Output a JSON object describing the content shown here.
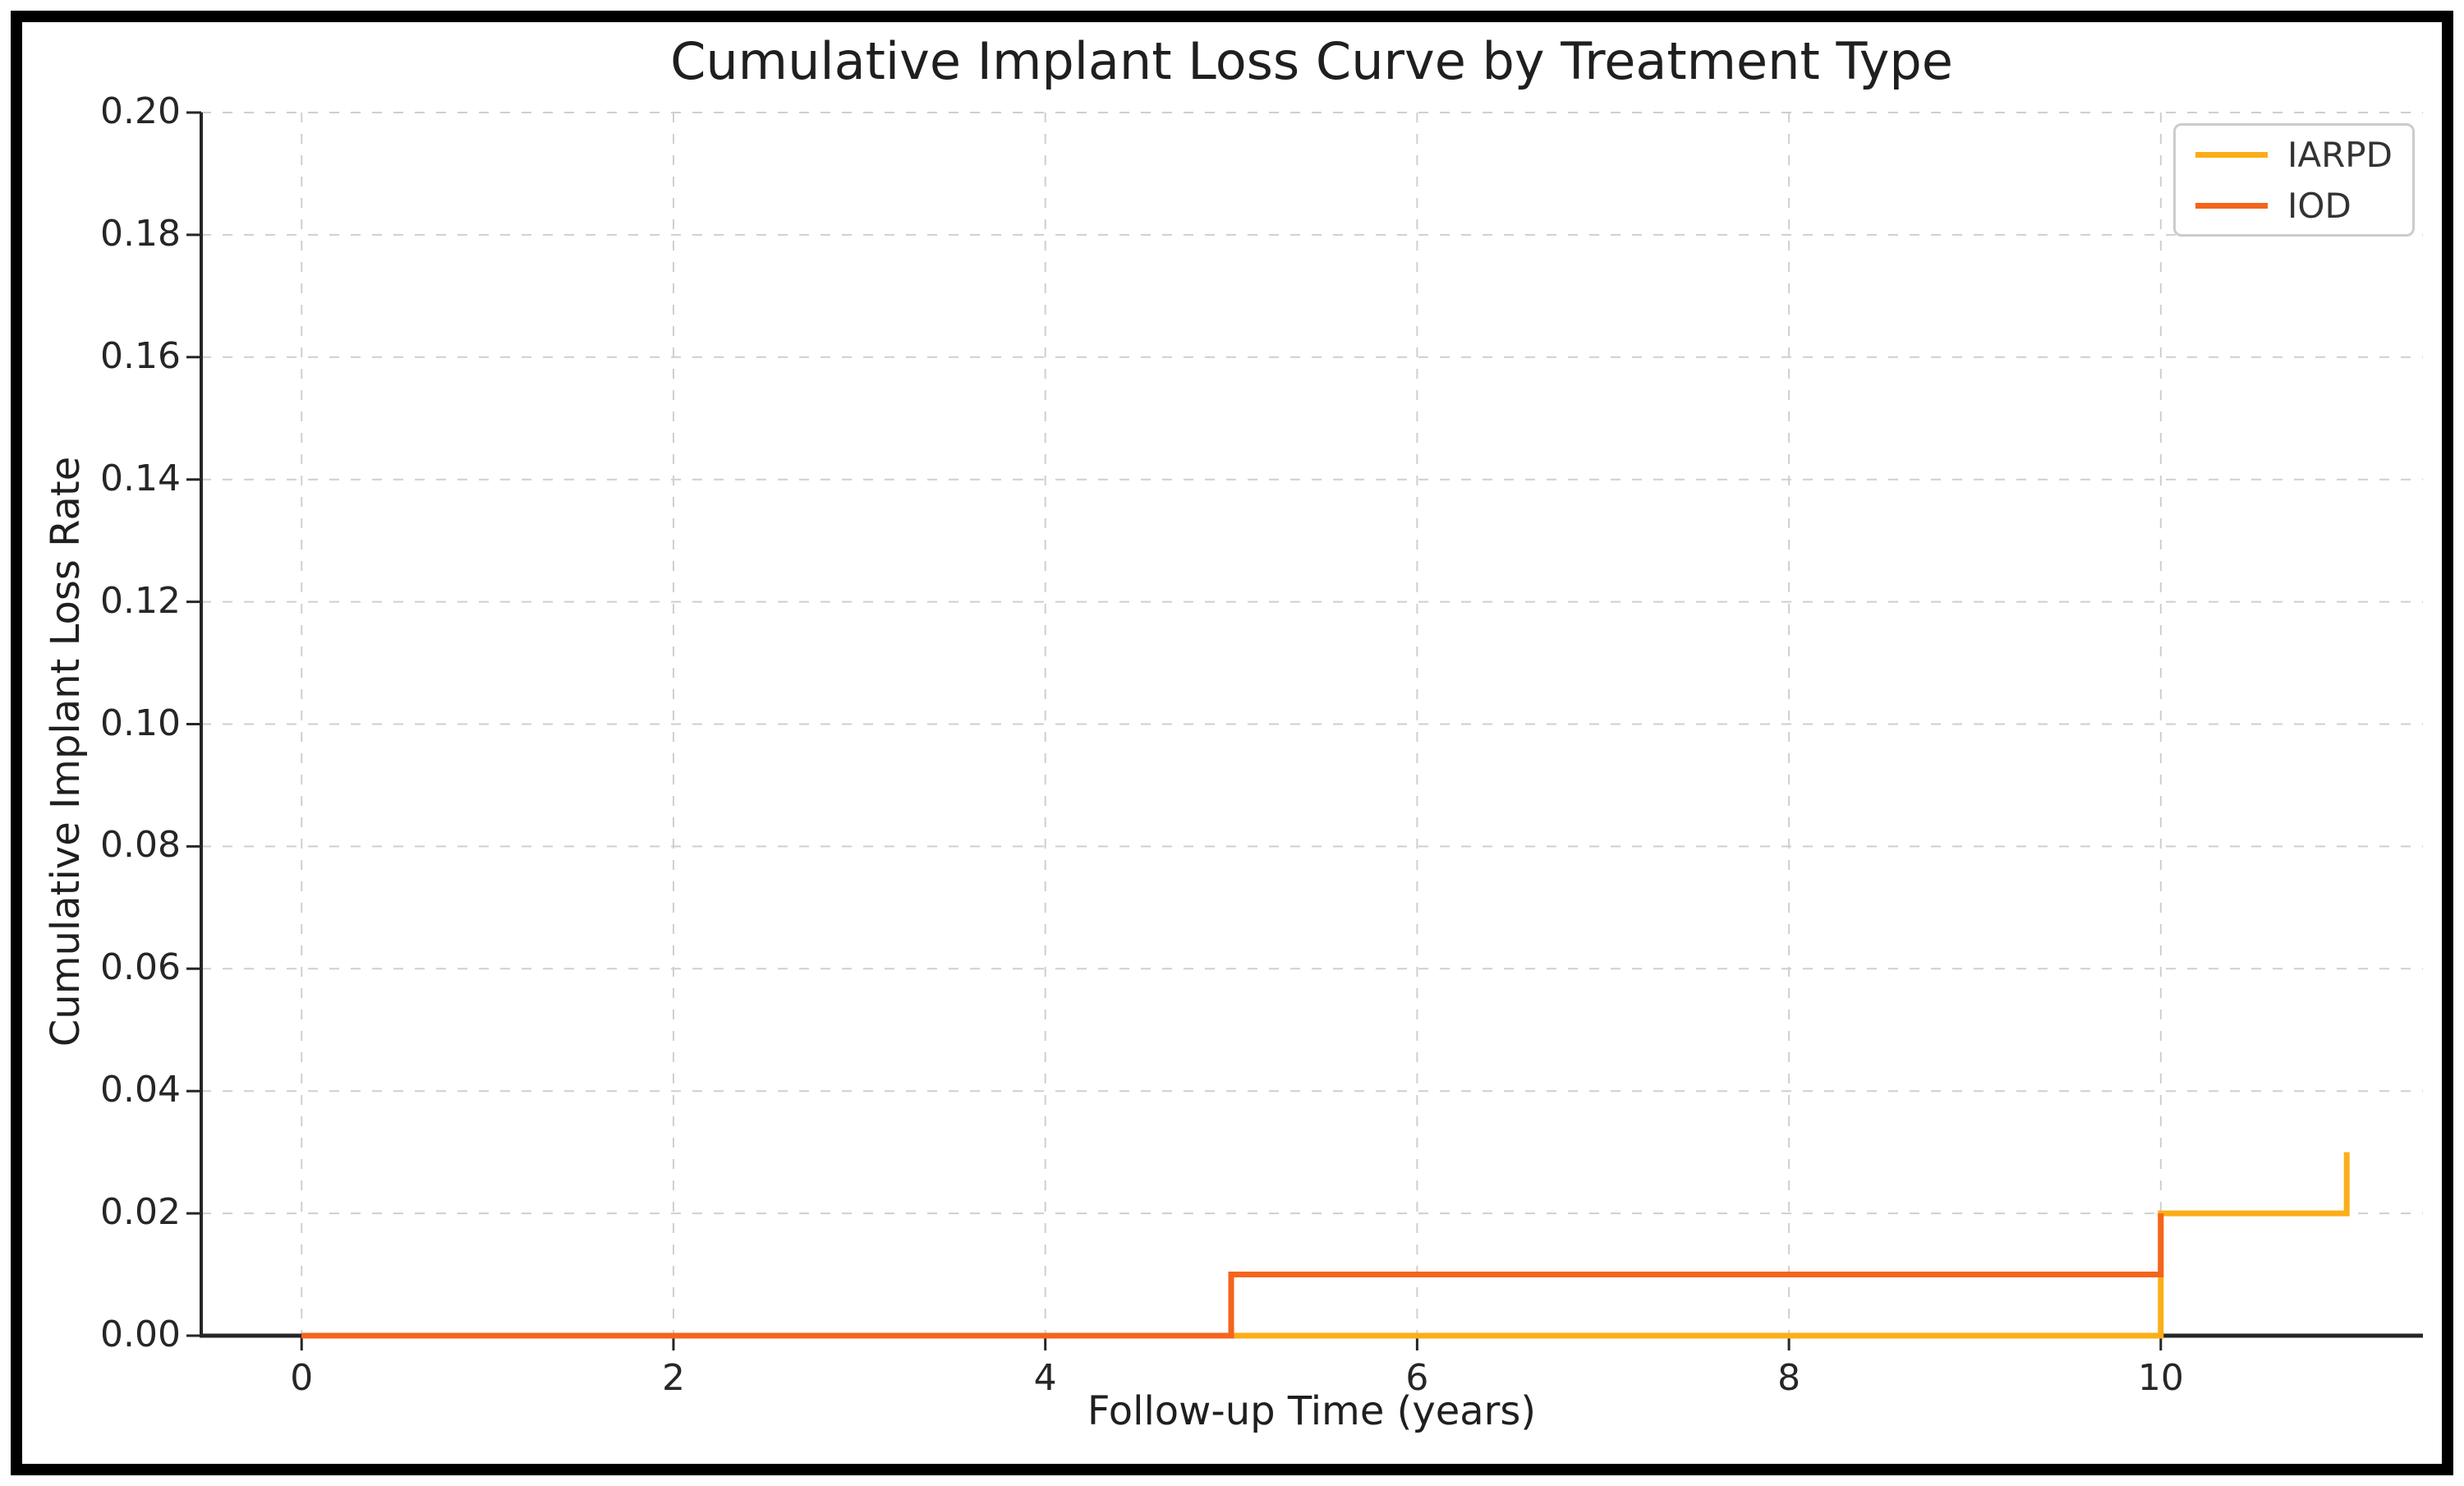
{
  "chart_data": {
    "type": "line",
    "subtype": "step",
    "title": "Cumulative Implant Loss Curve by Treatment Type",
    "xlabel": "Follow-up Time (years)",
    "ylabel": "Cumulative Implant Loss Rate",
    "xlim": [
      -0.54,
      11.41
    ],
    "ylim": [
      0,
      0.2
    ],
    "grid": true,
    "grid_style": "dashed",
    "legend_position": "upper right",
    "xticks": {
      "values": [
        0,
        2,
        4,
        6,
        8,
        10
      ],
      "labels": [
        "0",
        "2",
        "4",
        "6",
        "8",
        "10"
      ]
    },
    "yticks": {
      "values": [
        0.0,
        0.02,
        0.04,
        0.06,
        0.08,
        0.1,
        0.12,
        0.14,
        0.16,
        0.18,
        0.2
      ],
      "labels": [
        "0.00",
        "0.02",
        "0.04",
        "0.06",
        "0.08",
        "0.10",
        "0.12",
        "0.14",
        "0.16",
        "0.18",
        "0.20"
      ]
    },
    "series": [
      {
        "name": "IARPD",
        "color": "#FBAE17",
        "points": [
          [
            0,
            0.0
          ],
          [
            10,
            0.0
          ],
          [
            10,
            0.02
          ],
          [
            11,
            0.02
          ],
          [
            11,
            0.03
          ]
        ]
      },
      {
        "name": "IOD",
        "color": "#F4641D",
        "points": [
          [
            0,
            0.0
          ],
          [
            5,
            0.0
          ],
          [
            5,
            0.01
          ],
          [
            10,
            0.01
          ],
          [
            10,
            0.02
          ]
        ]
      }
    ]
  }
}
